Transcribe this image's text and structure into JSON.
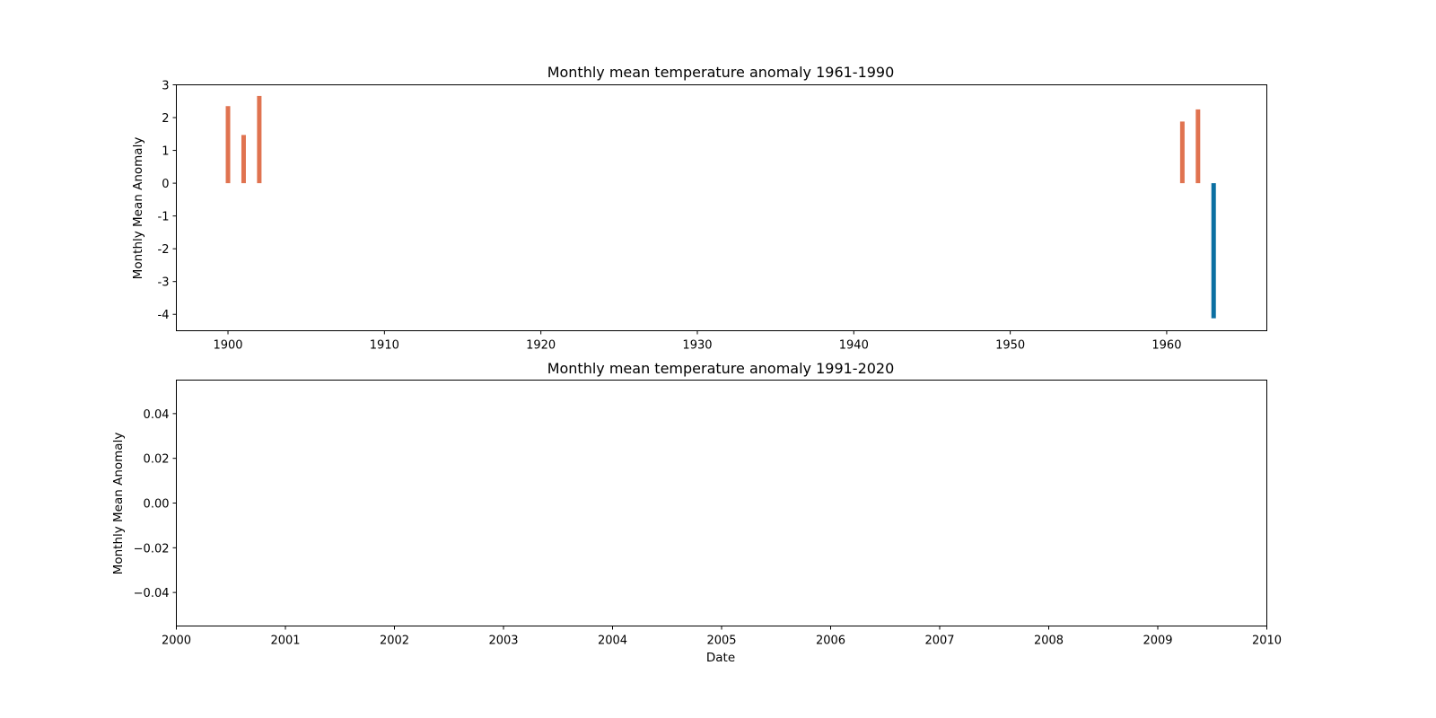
{
  "figure": {
    "xlabel": "Date"
  },
  "chart_data": [
    {
      "type": "bar",
      "title": "Monthly mean temperature anomaly 1961-1990",
      "xlabel": "",
      "ylabel": "Monthly Mean Anomaly",
      "x_scale": "date",
      "xlim": [
        1896.7,
        1966.4
      ],
      "ylim": [
        -4.5,
        3.0
      ],
      "xticks": [
        1900,
        1910,
        1920,
        1930,
        1940,
        1950,
        1960
      ],
      "yticks": [
        3,
        2,
        1,
        0,
        -1,
        -2,
        -3,
        -4
      ],
      "grid": false,
      "colors": {
        "positive": "#e07350",
        "negative": "#0b6fa2"
      },
      "bars": [
        {
          "x": 1900.0,
          "value": 2.35
        },
        {
          "x": 1901.0,
          "value": 1.47
        },
        {
          "x": 1902.0,
          "value": 2.66
        },
        {
          "x": 1961.0,
          "value": 1.88
        },
        {
          "x": 1962.0,
          "value": 2.25
        },
        {
          "x": 1963.0,
          "value": -4.12
        }
      ]
    },
    {
      "type": "bar",
      "title": "Monthly mean temperature anomaly 1991-2020",
      "xlabel": "Date",
      "ylabel": "Monthly Mean Anomaly",
      "x_scale": "date",
      "xlim": [
        2000,
        2010
      ],
      "ylim": [
        -0.055,
        0.055
      ],
      "xticks": [
        2000,
        2001,
        2002,
        2003,
        2004,
        2005,
        2006,
        2007,
        2008,
        2009,
        2010
      ],
      "yticks": [
        "0.04",
        "0.02",
        "0.00",
        "−0.02",
        "−0.04"
      ],
      "grid": false,
      "bars": []
    }
  ]
}
